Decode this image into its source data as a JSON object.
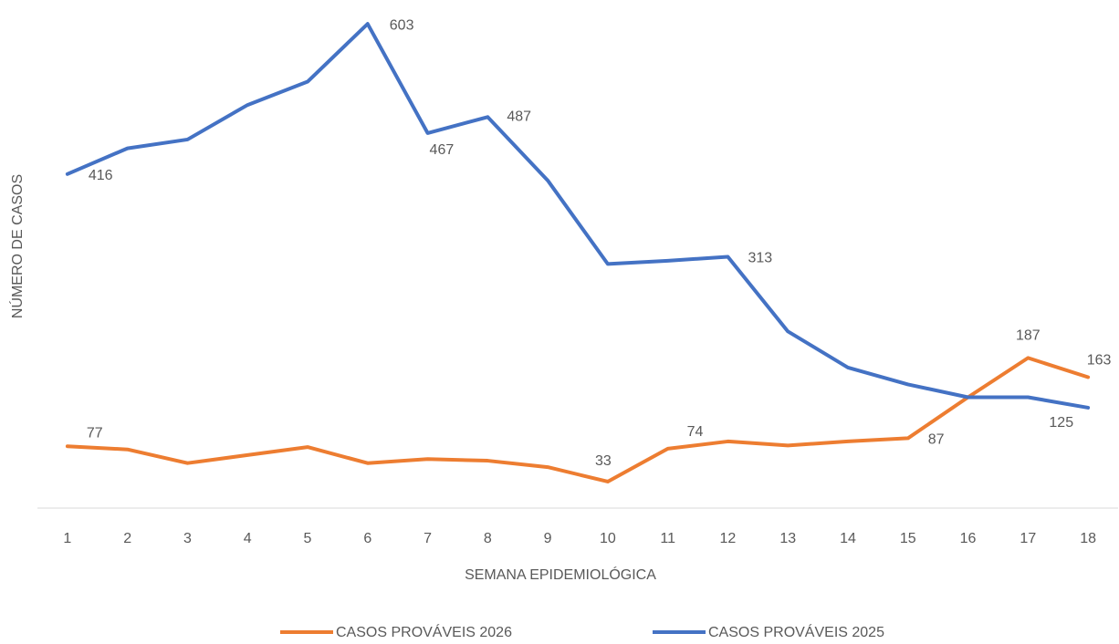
{
  "chart_data": {
    "type": "line",
    "x_label": "SEMANA EPIDEMIOLÓGICA",
    "y_label": "NÚMERO DE CASOS",
    "categories": [
      "1",
      "2",
      "3",
      "4",
      "5",
      "6",
      "7",
      "8",
      "9",
      "10",
      "11",
      "12",
      "13",
      "14",
      "15",
      "16",
      "17",
      "18"
    ],
    "ylim": [
      0,
      610
    ],
    "series": [
      {
        "name": "CASOS PROVÁVEIS 2026",
        "color": "#ed7d31",
        "values": [
          77,
          73,
          56,
          66,
          76,
          56,
          61,
          59,
          51,
          33,
          74,
          83,
          78,
          83,
          87,
          138,
          187,
          163
        ],
        "value_labels": [
          "77",
          null,
          null,
          null,
          null,
          null,
          null,
          null,
          null,
          "33",
          "74",
          null,
          null,
          null,
          "87",
          null,
          "187",
          "163"
        ]
      },
      {
        "name": "CASOS PROVÁVEIS 2025",
        "color": "#4472c4",
        "values": [
          416,
          448,
          459,
          502,
          531,
          603,
          467,
          487,
          408,
          304,
          308,
          313,
          220,
          175,
          154,
          138,
          138,
          125
        ],
        "value_labels": [
          "416",
          null,
          null,
          null,
          null,
          "603",
          "467",
          "487",
          null,
          null,
          null,
          "313",
          null,
          null,
          null,
          null,
          null,
          "125"
        ]
      }
    ]
  }
}
